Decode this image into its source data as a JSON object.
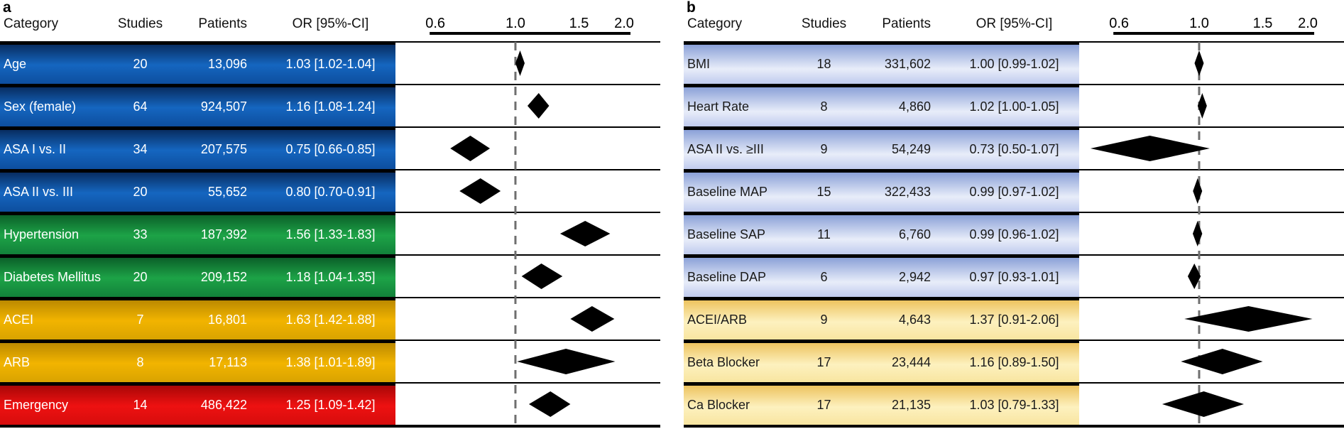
{
  "panels": [
    {
      "label": "a",
      "columns": [
        "Category",
        "Studies",
        "Patients",
        "OR [95%-CI]"
      ],
      "axis": {
        "tick_labels": [
          "0.6",
          "1.0",
          "1.5",
          "2.0"
        ],
        "ticks": [
          0.6,
          1.0,
          1.5,
          2.0
        ],
        "scale": "log",
        "reference_line": 1.0
      },
      "rows": [
        {
          "category": "Age",
          "studies": "20",
          "patients": "13,096",
          "or_ci": "1.03 [1.02-1.04]",
          "or": 1.03,
          "ci_low": 1.02,
          "ci_high": 1.04,
          "group": "blue"
        },
        {
          "category": "Sex (female)",
          "studies": "64",
          "patients": "924,507",
          "or_ci": "1.16 [1.08-1.24]",
          "or": 1.16,
          "ci_low": 1.08,
          "ci_high": 1.24,
          "group": "blue"
        },
        {
          "category": "ASA I vs. II",
          "studies": "34",
          "patients": "207,575",
          "or_ci": "0.75 [0.66-0.85]",
          "or": 0.75,
          "ci_low": 0.66,
          "ci_high": 0.85,
          "group": "blue"
        },
        {
          "category": "ASA II vs. III",
          "studies": "20",
          "patients": "55,652",
          "or_ci": "0.80 [0.70-0.91]",
          "or": 0.8,
          "ci_low": 0.7,
          "ci_high": 0.91,
          "group": "blue"
        },
        {
          "category": "Hypertension",
          "studies": "33",
          "patients": "187,392",
          "or_ci": "1.56 [1.33-1.83]",
          "or": 1.56,
          "ci_low": 1.33,
          "ci_high": 1.83,
          "group": "green"
        },
        {
          "category": "Diabetes Mellitus",
          "studies": "20",
          "patients": "209,152",
          "or_ci": "1.18 [1.04-1.35]",
          "or": 1.18,
          "ci_low": 1.04,
          "ci_high": 1.35,
          "group": "green"
        },
        {
          "category": "ACEI",
          "studies": "7",
          "patients": "16,801",
          "or_ci": "1.63 [1.42-1.88]",
          "or": 1.63,
          "ci_low": 1.42,
          "ci_high": 1.88,
          "group": "gold"
        },
        {
          "category": "ARB",
          "studies": "8",
          "patients": "17,113",
          "or_ci": "1.38 [1.01-1.89]",
          "or": 1.38,
          "ci_low": 1.01,
          "ci_high": 1.89,
          "group": "gold"
        },
        {
          "category": "Emergency",
          "studies": "14",
          "patients": "486,422",
          "or_ci": "1.25 [1.09-1.42]",
          "or": 1.25,
          "ci_low": 1.09,
          "ci_high": 1.42,
          "group": "red"
        }
      ]
    },
    {
      "label": "b",
      "columns": [
        "Category",
        "Studies",
        "Patients",
        "OR [95%-CI]"
      ],
      "axis": {
        "tick_labels": [
          "0.6",
          "1.0",
          "1.5",
          "2.0"
        ],
        "ticks": [
          0.6,
          1.0,
          1.5,
          2.0
        ],
        "scale": "log",
        "reference_line": 1.0
      },
      "rows": [
        {
          "category": "BMI",
          "studies": "18",
          "patients": "331,602",
          "or_ci": "1.00 [0.99-1.02]",
          "or": 1.0,
          "ci_low": 0.99,
          "ci_high": 1.02,
          "group": "periwinkle"
        },
        {
          "category": "Heart Rate",
          "studies": "8",
          "patients": "4,860",
          "or_ci": "1.02 [1.00-1.05]",
          "or": 1.02,
          "ci_low": 1.0,
          "ci_high": 1.05,
          "group": "periwinkle"
        },
        {
          "category": "ASA II vs. ≥III",
          "studies": "9",
          "patients": "54,249",
          "or_ci": "0.73 [0.50-1.07]",
          "or": 0.73,
          "ci_low": 0.5,
          "ci_high": 1.07,
          "group": "periwinkle"
        },
        {
          "category": "Baseline MAP",
          "studies": "15",
          "patients": "322,433",
          "or_ci": "0.99 [0.97-1.02]",
          "or": 0.99,
          "ci_low": 0.97,
          "ci_high": 1.02,
          "group": "periwinkle"
        },
        {
          "category": "Baseline SAP",
          "studies": "11",
          "patients": "6,760",
          "or_ci": "0.99 [0.96-1.02]",
          "or": 0.99,
          "ci_low": 0.96,
          "ci_high": 1.02,
          "group": "periwinkle"
        },
        {
          "category": "Baseline DAP",
          "studies": "6",
          "patients": "2,942",
          "or_ci": "0.97 [0.93-1.01]",
          "or": 0.97,
          "ci_low": 0.93,
          "ci_high": 1.01,
          "group": "periwinkle"
        },
        {
          "category": "ACEI/ARB",
          "studies": "9",
          "patients": "4,643",
          "or_ci": "1.37 [0.91-2.06]",
          "or": 1.37,
          "ci_low": 0.91,
          "ci_high": 2.06,
          "group": "cream"
        },
        {
          "category": "Beta Blocker",
          "studies": "17",
          "patients": "23,444",
          "or_ci": "1.16 [0.89-1.50]",
          "or": 1.16,
          "ci_low": 0.89,
          "ci_high": 1.5,
          "group": "cream"
        },
        {
          "category": "Ca Blocker",
          "studies": "17",
          "patients": "21,135",
          "or_ci": "1.03 [0.79-1.33]",
          "or": 1.03,
          "ci_low": 0.79,
          "ci_high": 1.33,
          "group": "cream"
        }
      ]
    }
  ],
  "colors": {
    "row_blue": "#1566c0",
    "row_green": "#1da347",
    "row_gold": "#f2b400",
    "row_red": "#ee1111",
    "row_periwinkle": "#aebde7",
    "row_cream": "#fdeeb5",
    "diamond": "#000000",
    "reference_line": "#6f6f6f",
    "border": "#000000",
    "panel_a_text": "#ffffff",
    "panel_b_text": "#1a1a1a"
  },
  "chart_data": [
    {
      "type": "forest",
      "panel": "a",
      "categories": [
        "Age",
        "Sex (female)",
        "ASA I vs. II",
        "ASA II vs. III",
        "Hypertension",
        "Diabetes Mellitus",
        "ACEI",
        "ARB",
        "Emergency"
      ],
      "studies": [
        20,
        64,
        34,
        20,
        33,
        20,
        7,
        8,
        14
      ],
      "patients": [
        13096,
        924507,
        207575,
        55652,
        187392,
        209152,
        16801,
        17113,
        486422
      ],
      "or": [
        1.03,
        1.16,
        0.75,
        0.8,
        1.56,
        1.18,
        1.63,
        1.38,
        1.25
      ],
      "ci_low": [
        1.02,
        1.08,
        0.66,
        0.7,
        1.33,
        1.04,
        1.42,
        1.01,
        1.09
      ],
      "ci_high": [
        1.04,
        1.24,
        0.85,
        0.91,
        1.83,
        1.35,
        1.88,
        1.89,
        1.42
      ],
      "x_ticks": [
        0.6,
        1.0,
        1.5,
        2.0
      ],
      "x_scale": "log",
      "reference_line": 1.0,
      "xlim": [
        0.55,
        2.1
      ],
      "title": "",
      "xlabel": "",
      "ylabel": ""
    },
    {
      "type": "forest",
      "panel": "b",
      "categories": [
        "BMI",
        "Heart Rate",
        "ASA II vs. ≥III",
        "Baseline MAP",
        "Baseline SAP",
        "Baseline DAP",
        "ACEI/ARB",
        "Beta Blocker",
        "Ca Blocker"
      ],
      "studies": [
        18,
        8,
        9,
        15,
        11,
        6,
        9,
        17,
        17
      ],
      "patients": [
        331602,
        4860,
        54249,
        322433,
        6760,
        2942,
        4643,
        23444,
        21135
      ],
      "or": [
        1.0,
        1.02,
        0.73,
        0.99,
        0.99,
        0.97,
        1.37,
        1.16,
        1.03
      ],
      "ci_low": [
        0.99,
        1.0,
        0.5,
        0.97,
        0.96,
        0.93,
        0.91,
        0.89,
        0.79
      ],
      "ci_high": [
        1.02,
        1.05,
        1.07,
        1.02,
        1.02,
        1.01,
        2.06,
        1.5,
        1.33
      ],
      "x_ticks": [
        0.6,
        1.0,
        1.5,
        2.0
      ],
      "x_scale": "log",
      "reference_line": 1.0,
      "xlim": [
        0.55,
        2.1
      ],
      "title": "",
      "xlabel": "",
      "ylabel": ""
    }
  ]
}
